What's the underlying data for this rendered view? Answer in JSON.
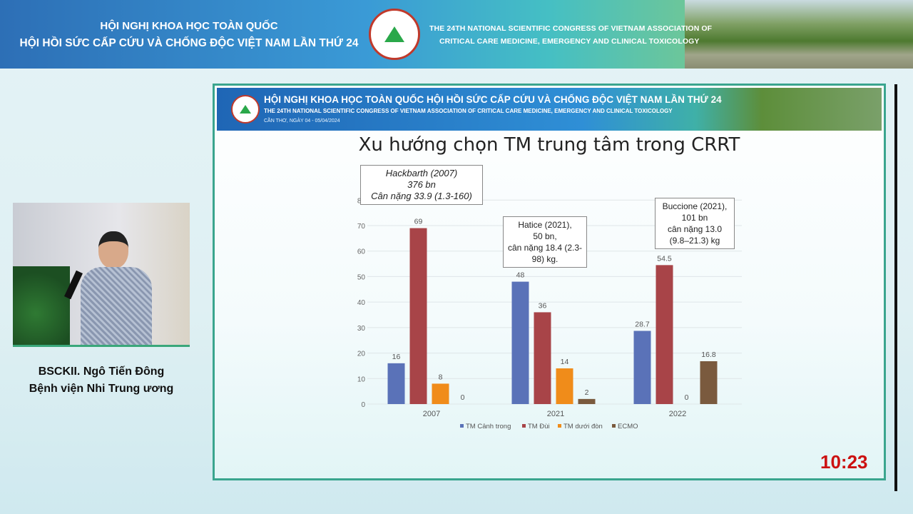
{
  "banner": {
    "vn_line1": "HỘI NGHỊ KHOA HỌC TOÀN QUỐC",
    "vn_line2": "HỘI HỒI SỨC CẤP CỨU VÀ CHỐNG ĐỘC VIỆT NAM LẦN THỨ 24",
    "en_line1": "THE 24TH NATIONAL SCIENTIFIC CONGRESS OF VIETNAM ASSOCIATION OF",
    "en_line2": "CRITICAL CARE MEDICINE, EMERGENCY AND CLINICAL TOXICOLOGY"
  },
  "speaker": {
    "name": "BSCKII. Ngô Tiến Đông",
    "affiliation": "Bệnh viện Nhi Trung ương"
  },
  "slide": {
    "header_line1": "HỘI NGHỊ KHOA HỌC TOÀN QUỐC HỘI HỒI SỨC CẤP CỨU VÀ CHỐNG ĐỘC VIỆT NAM LẦN THỨ 24",
    "header_line2": "THE 24TH NATIONAL SCIENTIFIC CONGRESS OF VIETNAM ASSOCIATION OF CRITICAL CARE MEDICINE, EMERGENCY AND CLINICAL TOXICOLOGY",
    "header_line3": "CẦN THƠ, NGÀY 04 - 05/04/2024",
    "title": "Xu hướng chọn TM trung tâm trong CRRT"
  },
  "timer": "10:23",
  "chart_data": {
    "type": "bar",
    "title": "Xu hướng chọn TM trung tâm trong CRRT",
    "categories": [
      "2007",
      "2021",
      "2022"
    ],
    "series": [
      {
        "name": "TM Cảnh trong",
        "color": "#5a72b8",
        "values": [
          16,
          48,
          28.7
        ],
        "labels": [
          "16",
          "48",
          "28.7"
        ]
      },
      {
        "name": "TM Đùi",
        "color": "#a84448",
        "values": [
          69,
          36,
          54.5
        ],
        "labels": [
          "69",
          "36",
          "54.5"
        ]
      },
      {
        "name": "TM dưới đòn",
        "color": "#f08c1a",
        "values": [
          8,
          14,
          0
        ],
        "labels": [
          "8",
          "14",
          "0"
        ]
      },
      {
        "name": "ECMO",
        "color": "#7a5a3e",
        "values": [
          0,
          2,
          16.8
        ],
        "labels": [
          "0",
          "2",
          "16.8"
        ]
      }
    ],
    "ylim": [
      0,
      80
    ],
    "yticks": [
      "0",
      "10",
      "20",
      "30",
      "40",
      "50",
      "60",
      "70",
      "80"
    ],
    "legend": "bottom",
    "annotations": [
      {
        "lines": [
          "Hackbarth (2007)",
          "376 bn",
          "Cân nặng 33.9 (1.3-160)"
        ]
      },
      {
        "lines": [
          "Hatice (2021),",
          "50 bn,",
          "cân nặng 18.4 (2.3-",
          "98) kg."
        ]
      },
      {
        "lines": [
          "Buccione (2021),",
          "101 bn",
          "cân nặng 13.0",
          "(9.8–21.3) kg"
        ]
      }
    ]
  }
}
